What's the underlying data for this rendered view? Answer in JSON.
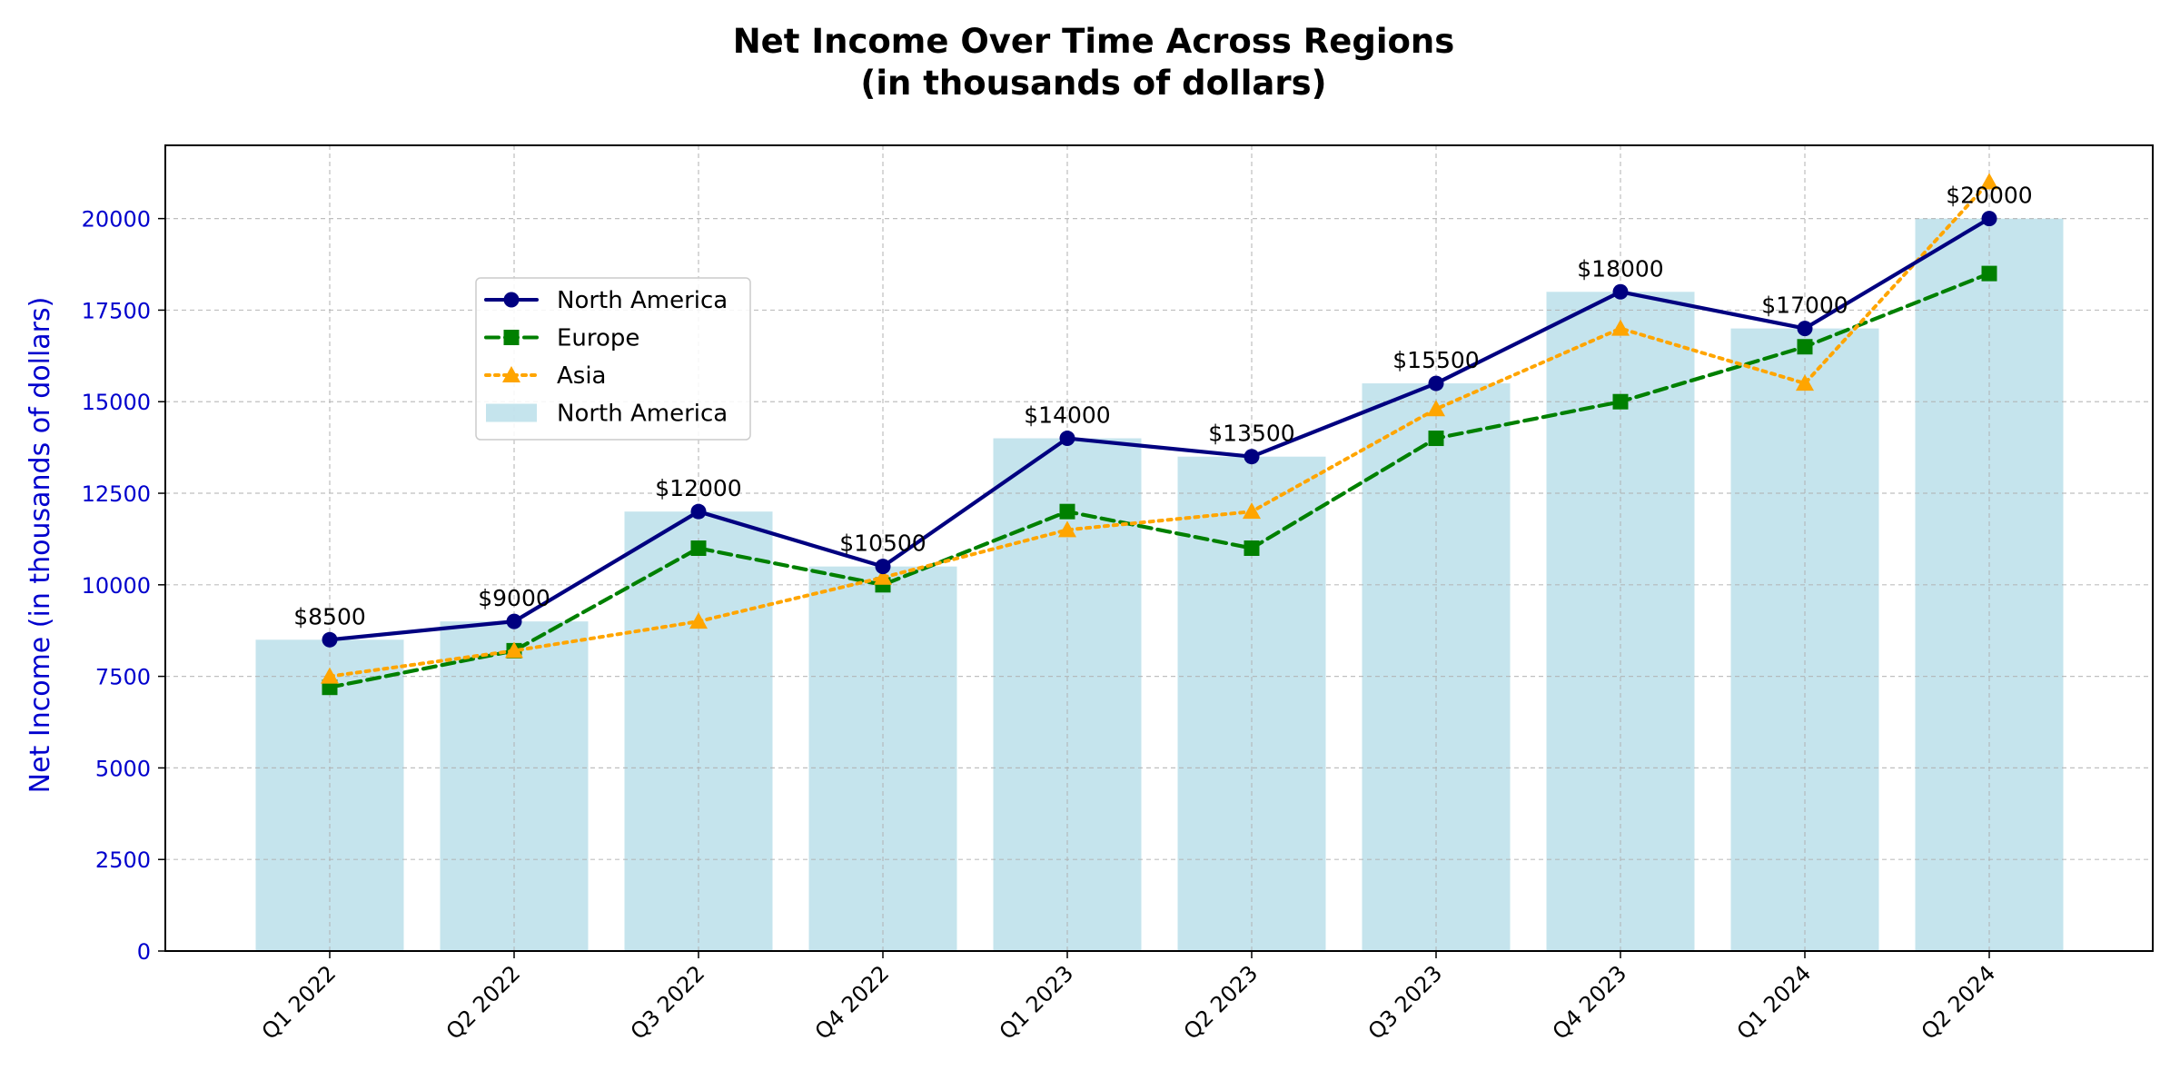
{
  "chart_data": {
    "type": "bar",
    "title_line1": "Net Income Over Time Across Regions",
    "title_line2": "(in thousands of dollars)",
    "xlabel": "",
    "ylabel": "Net Income (in thousands of dollars)",
    "ylim": [
      0,
      22000
    ],
    "yticks": [
      0,
      2500,
      5000,
      7500,
      10000,
      12500,
      15000,
      17500,
      20000
    ],
    "grid": true,
    "legend_position": "upper-left",
    "categories": [
      "Q1 2022",
      "Q2 2022",
      "Q3 2022",
      "Q4 2022",
      "Q1 2023",
      "Q2 2023",
      "Q3 2023",
      "Q4 2023",
      "Q1 2024",
      "Q2 2024"
    ],
    "bar_series": {
      "name": "North America",
      "values": [
        8500,
        9000,
        12000,
        10500,
        14000,
        13500,
        15500,
        18000,
        17000,
        20000
      ],
      "color": "#add8e6"
    },
    "data_labels": [
      "$8500",
      "$9000",
      "$12000",
      "$10500",
      "$14000",
      "$13500",
      "$15500",
      "$18000",
      "$17000",
      "$20000"
    ],
    "series": [
      {
        "name": "North America",
        "values": [
          8500,
          9000,
          12000,
          10500,
          14000,
          13500,
          15500,
          18000,
          17000,
          20000
        ],
        "color": "#000080",
        "linestyle": "solid",
        "marker": "circle"
      },
      {
        "name": "Europe",
        "values": [
          7200,
          8200,
          11000,
          10000,
          12000,
          11000,
          14000,
          15000,
          16500,
          18500
        ],
        "color": "#008000",
        "linestyle": "dashed",
        "marker": "square"
      },
      {
        "name": "Asia",
        "values": [
          7500,
          8200,
          9000,
          10200,
          11500,
          12000,
          14800,
          17000,
          15500,
          21000
        ],
        "color": "#ffa500",
        "linestyle": "dotted",
        "marker": "triangle"
      }
    ],
    "axis_label_color": "#0000cd"
  }
}
